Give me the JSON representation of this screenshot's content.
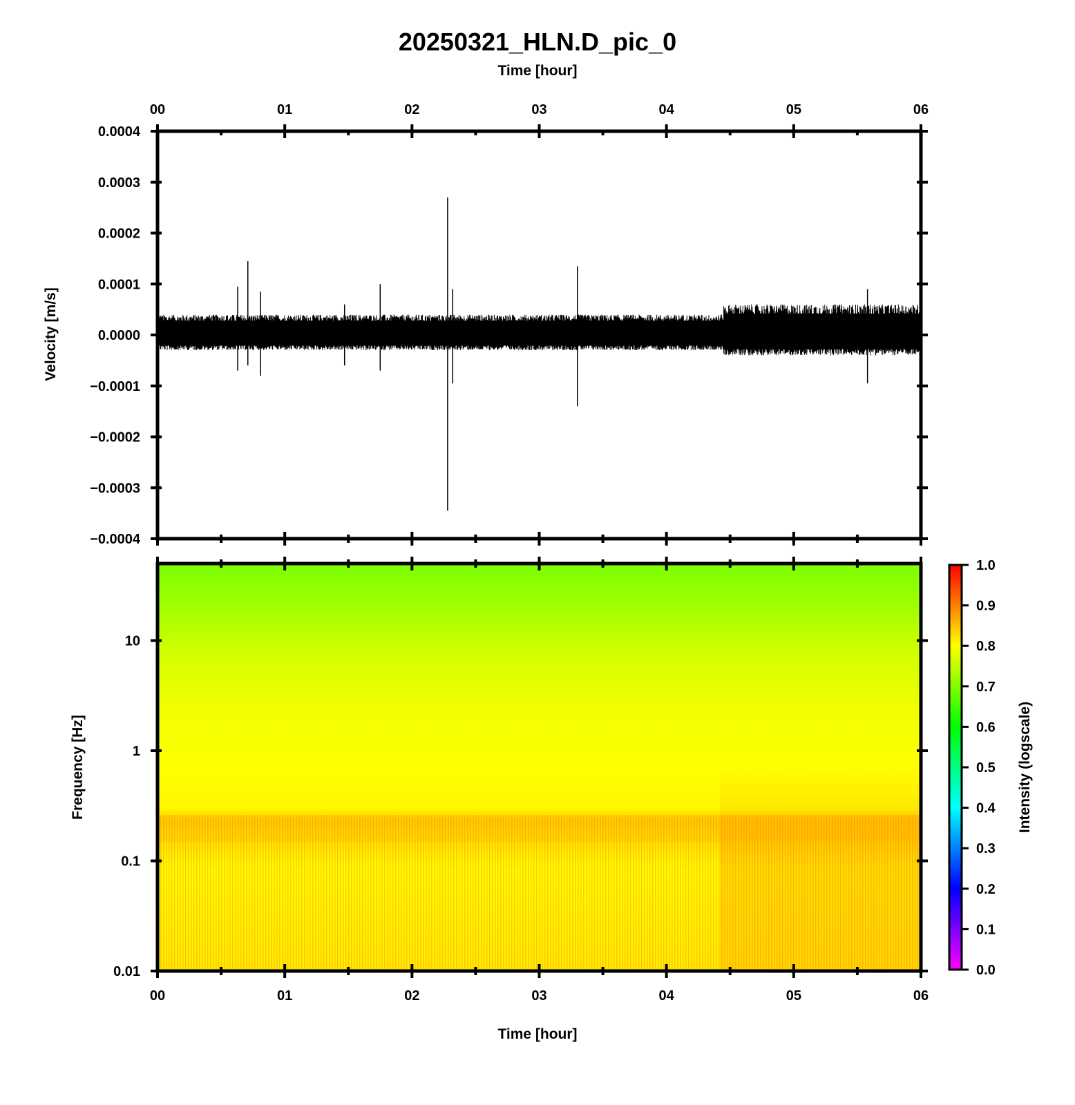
{
  "title": "20250321_HLN.D_pic_0",
  "colors": {
    "trace": "#000000",
    "frame": "#000000",
    "background": "#ffffff"
  },
  "chart_data": [
    {
      "type": "line",
      "panel": "waveform",
      "title": "20250321_HLN.D_pic_0",
      "xlabel": "Time [hour]",
      "ylabel": "Velocity [m/s]",
      "x_axis_position": "top",
      "xlim": [
        0,
        6
      ],
      "ylim": [
        -0.0004,
        0.0004
      ],
      "x_ticks": [
        0,
        1,
        2,
        3,
        4,
        5,
        6
      ],
      "x_tick_labels": [
        "00",
        "01",
        "02",
        "03",
        "04",
        "05",
        "06"
      ],
      "y_ticks": [
        0.0004,
        0.0003,
        0.0002,
        0.0001,
        0.0,
        -0.0001,
        -0.0002,
        -0.0003,
        -0.0004
      ],
      "y_tick_labels": [
        "0.0004",
        "0.0003",
        "0.0002",
        "0.0001",
        "0.0000",
        "−0.0001",
        "−0.0002",
        "−0.0003",
        "−0.0004"
      ],
      "grid": false,
      "noise_envelope": [
        {
          "x_start": 0.0,
          "x_end": 4.45,
          "y_upper": 4e-05,
          "y_lower": -3e-05
        },
        {
          "x_start": 4.45,
          "x_end": 6.0,
          "y_upper": 6e-05,
          "y_lower": -4e-05
        }
      ],
      "spikes": [
        {
          "x": 0.63,
          "y_max": 9.5e-05,
          "y_min": -7e-05
        },
        {
          "x": 0.71,
          "y_max": 0.000145,
          "y_min": -6e-05
        },
        {
          "x": 0.81,
          "y_max": 8.5e-05,
          "y_min": -8e-05
        },
        {
          "x": 1.47,
          "y_max": 6e-05,
          "y_min": -6e-05
        },
        {
          "x": 1.75,
          "y_max": 0.0001,
          "y_min": -7e-05
        },
        {
          "x": 2.28,
          "y_max": 0.00027,
          "y_min": -0.000345
        },
        {
          "x": 2.32,
          "y_max": 9e-05,
          "y_min": -9.5e-05
        },
        {
          "x": 3.3,
          "y_max": 0.000135,
          "y_min": -0.00014
        },
        {
          "x": 5.58,
          "y_max": 9e-05,
          "y_min": -9.5e-05
        }
      ]
    },
    {
      "type": "heatmap",
      "panel": "spectrogram",
      "xlabel": "Time [hour]",
      "ylabel": "Frequency [Hz]",
      "xlim": [
        0,
        6
      ],
      "ylim": [
        0.01,
        50
      ],
      "y_scale": "log",
      "x_ticks": [
        0,
        1,
        2,
        3,
        4,
        5,
        6
      ],
      "x_tick_labels": [
        "00",
        "01",
        "02",
        "03",
        "04",
        "05",
        "06"
      ],
      "y_ticks": [
        10,
        1,
        0.1,
        0.01
      ],
      "y_tick_labels": [
        "10",
        "1",
        "0.1",
        "0.01"
      ],
      "colorbar": {
        "label": "Intensity (logscale)",
        "range": [
          0.0,
          1.0
        ],
        "ticks": [
          1.0,
          0.9,
          0.8,
          0.7,
          0.6,
          0.5,
          0.4,
          0.3,
          0.2,
          0.1,
          0.0
        ],
        "tick_labels": [
          "1.0",
          "0.9",
          "0.8",
          "0.7",
          "0.6",
          "0.5",
          "0.4",
          "0.3",
          "0.2",
          "0.1",
          "0.0"
        ],
        "colormap": [
          "#ff00ff",
          "#8000ff",
          "#0000ff",
          "#0080ff",
          "#00ffff",
          "#00ff80",
          "#00ff00",
          "#80ff00",
          "#ffff00",
          "#ff8000",
          "#ff0000"
        ]
      },
      "intensity_profile": [
        {
          "freq_hz": 50,
          "intensity": 0.68
        },
        {
          "freq_hz": 10,
          "intensity": 0.74
        },
        {
          "freq_hz": 3,
          "intensity": 0.77
        },
        {
          "freq_hz": 1,
          "intensity": 0.79
        },
        {
          "freq_hz": 0.3,
          "intensity": 0.82
        },
        {
          "freq_hz": 0.2,
          "intensity": 0.85
        },
        {
          "freq_hz": 0.1,
          "intensity": 0.8
        },
        {
          "freq_hz": 0.01,
          "intensity": 0.82
        }
      ]
    }
  ]
}
